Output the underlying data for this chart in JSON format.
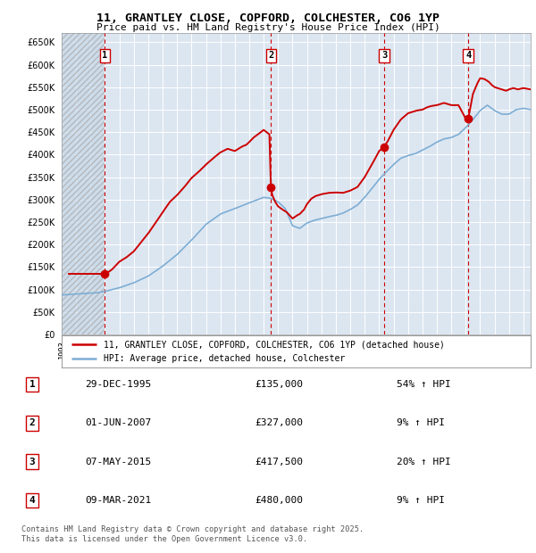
{
  "title1": "11, GRANTLEY CLOSE, COPFORD, COLCHESTER, CO6 1YP",
  "title2": "Price paid vs. HM Land Registry's House Price Index (HPI)",
  "ylim": [
    0,
    670000
  ],
  "yticks": [
    0,
    50000,
    100000,
    150000,
    200000,
    250000,
    300000,
    350000,
    400000,
    450000,
    500000,
    550000,
    600000,
    650000
  ],
  "ytick_labels": [
    "£0",
    "£50K",
    "£100K",
    "£150K",
    "£200K",
    "£250K",
    "£300K",
    "£350K",
    "£400K",
    "£450K",
    "£500K",
    "£550K",
    "£600K",
    "£650K"
  ],
  "bg_color": "#dce6f1",
  "fig_bg": "#ffffff",
  "sale_color": "#cc0000",
  "hpi_color": "#7dadd4",
  "sale_dates": [
    1995.99,
    2007.5,
    2015.35,
    2021.18
  ],
  "sale_prices": [
    135000,
    327000,
    417500,
    480000
  ],
  "sale_labels": [
    "1",
    "2",
    "3",
    "4"
  ],
  "legend_sale": "11, GRANTLEY CLOSE, COPFORD, COLCHESTER, CO6 1YP (detached house)",
  "legend_hpi": "HPI: Average price, detached house, Colchester",
  "table_entries": [
    {
      "num": "1",
      "date": "29-DEC-1995",
      "price": "£135,000",
      "change": "54% ↑ HPI"
    },
    {
      "num": "2",
      "date": "01-JUN-2007",
      "price": "£327,000",
      "change": "9% ↑ HPI"
    },
    {
      "num": "3",
      "date": "07-MAY-2015",
      "price": "£417,500",
      "change": "20% ↑ HPI"
    },
    {
      "num": "4",
      "date": "09-MAR-2021",
      "price": "£480,000",
      "change": "9% ↑ HPI"
    }
  ],
  "footer": "Contains HM Land Registry data © Crown copyright and database right 2025.\nThis data is licensed under the Open Government Licence v3.0.",
  "xmin": 1993,
  "xmax": 2025.5,
  "hpi_anchors_x": [
    1993.0,
    1994.0,
    1995.0,
    1995.5,
    1996.0,
    1997.0,
    1998.0,
    1999.0,
    2000.0,
    2001.0,
    2002.0,
    2003.0,
    2004.0,
    2005.0,
    2006.0,
    2007.0,
    2007.5,
    2008.0,
    2008.5,
    2009.0,
    2009.5,
    2010.0,
    2010.5,
    2011.0,
    2011.5,
    2012.0,
    2012.5,
    2013.0,
    2013.5,
    2014.0,
    2014.5,
    2015.0,
    2015.5,
    2016.0,
    2016.5,
    2017.0,
    2017.5,
    2018.0,
    2018.5,
    2019.0,
    2019.5,
    2020.0,
    2020.5,
    2021.0,
    2021.5,
    2022.0,
    2022.5,
    2023.0,
    2023.5,
    2024.0,
    2024.5,
    2025.0,
    2025.5
  ],
  "hpi_anchors_y": [
    88000,
    90000,
    92000,
    93000,
    96000,
    104000,
    115000,
    130000,
    152000,
    178000,
    210000,
    245000,
    268000,
    280000,
    293000,
    305000,
    303000,
    295000,
    280000,
    242000,
    236000,
    248000,
    254000,
    258000,
    262000,
    265000,
    270000,
    278000,
    288000,
    305000,
    325000,
    345000,
    362000,
    378000,
    392000,
    398000,
    402000,
    410000,
    418000,
    428000,
    435000,
    438000,
    445000,
    460000,
    478000,
    498000,
    510000,
    498000,
    490000,
    490000,
    500000,
    503000,
    500000
  ],
  "red_anchors_x": [
    1993.5,
    1994.0,
    1995.0,
    1995.5,
    1995.99,
    1996.2,
    1996.5,
    1997.0,
    1997.5,
    1998.0,
    1998.5,
    1999.0,
    1999.5,
    2000.0,
    2000.5,
    2001.0,
    2001.5,
    2002.0,
    2002.5,
    2003.0,
    2003.5,
    2004.0,
    2004.5,
    2004.8,
    2005.0,
    2005.2,
    2005.5,
    2005.8,
    2006.0,
    2006.3,
    2006.6,
    2006.8,
    2007.0,
    2007.2,
    2007.4,
    2007.5,
    2007.6,
    2007.8,
    2008.0,
    2008.3,
    2008.6,
    2009.0,
    2009.3,
    2009.5,
    2009.8,
    2010.0,
    2010.3,
    2010.6,
    2011.0,
    2011.5,
    2012.0,
    2012.5,
    2013.0,
    2013.5,
    2014.0,
    2014.5,
    2015.0,
    2015.35,
    2015.6,
    2016.0,
    2016.5,
    2017.0,
    2017.3,
    2017.6,
    2018.0,
    2018.3,
    2018.6,
    2019.0,
    2019.5,
    2020.0,
    2020.5,
    2021.0,
    2021.18,
    2021.5,
    2021.8,
    2022.0,
    2022.3,
    2022.6,
    2022.8,
    2023.0,
    2023.2,
    2023.5,
    2023.8,
    2024.0,
    2024.3,
    2024.6,
    2025.0,
    2025.5
  ],
  "red_anchors_y": [
    135000,
    135000,
    135000,
    135000,
    135000,
    138000,
    145000,
    162000,
    172000,
    185000,
    205000,
    225000,
    248000,
    272000,
    295000,
    310000,
    328000,
    348000,
    362000,
    378000,
    392000,
    405000,
    413000,
    410000,
    408000,
    412000,
    418000,
    422000,
    428000,
    438000,
    445000,
    450000,
    455000,
    450000,
    445000,
    327000,
    310000,
    295000,
    285000,
    278000,
    272000,
    258000,
    265000,
    268000,
    278000,
    290000,
    302000,
    308000,
    312000,
    315000,
    316000,
    315000,
    320000,
    328000,
    350000,
    378000,
    408000,
    417500,
    430000,
    455000,
    478000,
    492000,
    495000,
    498000,
    500000,
    505000,
    508000,
    510000,
    515000,
    510000,
    510000,
    480000,
    480000,
    535000,
    558000,
    570000,
    568000,
    562000,
    555000,
    550000,
    548000,
    545000,
    542000,
    545000,
    548000,
    545000,
    548000,
    545000
  ]
}
